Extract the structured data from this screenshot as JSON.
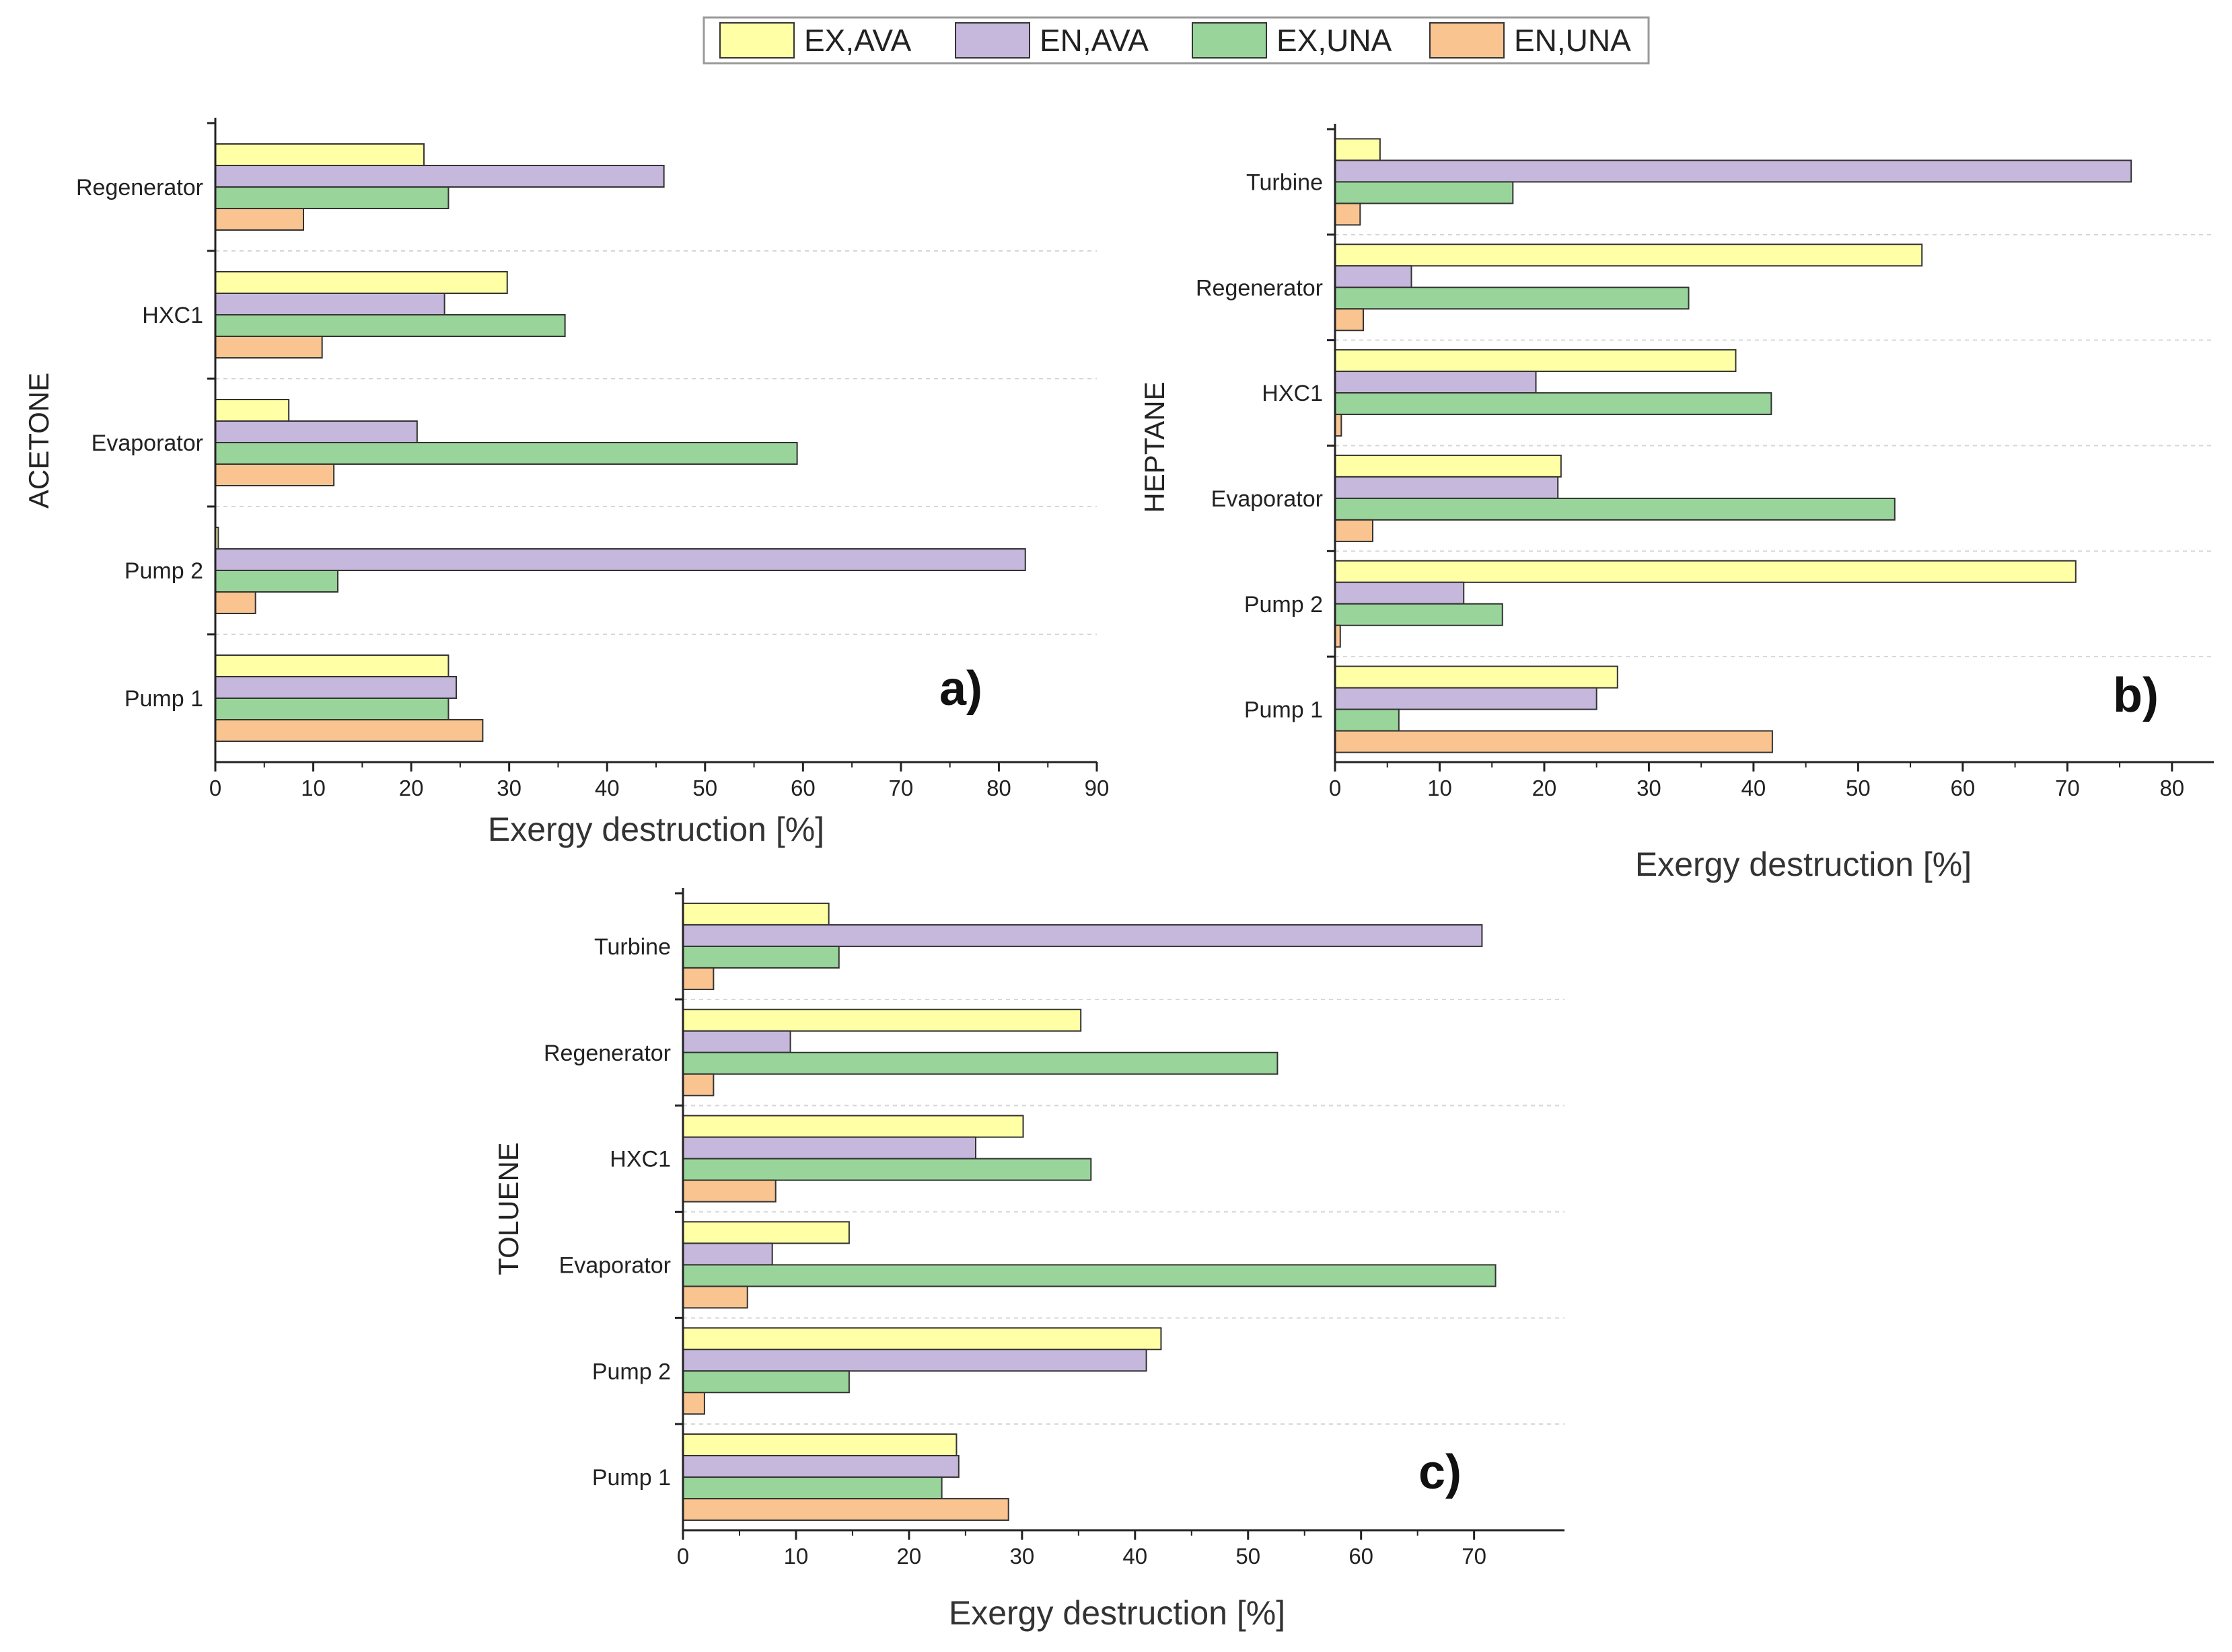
{
  "colors": {
    "ex_ava": "#FFFFA6",
    "en_ava": "#C6B7DC",
    "ex_una": "#99D59A",
    "en_una": "#FAC490",
    "bar_outline": "#333333",
    "grid": "#D6D6D6"
  },
  "legend": {
    "items": [
      {
        "label": "EX,AVA",
        "color": "#FFFFA6"
      },
      {
        "label": "EN,AVA",
        "color": "#C6B7DC"
      },
      {
        "label": "EX,UNA",
        "color": "#99D59A"
      },
      {
        "label": "EN,UNA",
        "color": "#FAC490"
      }
    ]
  },
  "chart_data": [
    {
      "type": "bar",
      "orientation": "horizontal",
      "panel": "a)",
      "title": "",
      "ylabel": "ACETONE",
      "xlabel": "Exergy destruction [%]",
      "xlim": [
        0,
        90
      ],
      "xticks": [
        0,
        10,
        20,
        30,
        40,
        50,
        60,
        70,
        80,
        90
      ],
      "grid": true,
      "categories": [
        "Regenerator",
        "HXC1",
        "Evaporator",
        "Pump 2",
        "Pump 1"
      ],
      "series": [
        {
          "name": "EX,AVA",
          "values": [
            21.3,
            29.8,
            7.5,
            0.3,
            23.8
          ]
        },
        {
          "name": "EN,AVA",
          "values": [
            45.8,
            23.4,
            20.6,
            82.7,
            24.6
          ]
        },
        {
          "name": "EX,UNA",
          "values": [
            23.8,
            35.7,
            59.4,
            12.5,
            23.8
          ]
        },
        {
          "name": "EN,UNA",
          "values": [
            9.0,
            10.9,
            12.1,
            4.1,
            27.3
          ]
        }
      ]
    },
    {
      "type": "bar",
      "orientation": "horizontal",
      "panel": "b)",
      "title": "",
      "ylabel": "HEPTANE",
      "xlabel": "Exergy destruction [%]",
      "xlim": [
        0,
        84
      ],
      "xticks": [
        0,
        10,
        20,
        30,
        40,
        50,
        60,
        70,
        80
      ],
      "grid": true,
      "categories": [
        "Turbine",
        "Regenerator",
        "HXC1",
        "Evaporator",
        "Pump 2",
        "Pump 1"
      ],
      "series": [
        {
          "name": "EX,AVA",
          "values": [
            4.3,
            56.1,
            38.3,
            21.6,
            70.8,
            27.0
          ]
        },
        {
          "name": "EN,AVA",
          "values": [
            76.1,
            7.3,
            19.2,
            21.3,
            12.3,
            25.0
          ]
        },
        {
          "name": "EX,UNA",
          "values": [
            17.0,
            33.8,
            41.7,
            53.5,
            16.0,
            6.1
          ]
        },
        {
          "name": "EN,UNA",
          "values": [
            2.4,
            2.7,
            0.6,
            3.6,
            0.5,
            41.8
          ]
        }
      ]
    },
    {
      "type": "bar",
      "orientation": "horizontal",
      "panel": "c)",
      "title": "",
      "ylabel": "TOLUENE",
      "xlabel": "Exergy destruction [%]",
      "xlim": [
        0,
        78
      ],
      "xticks": [
        0,
        10,
        20,
        30,
        40,
        50,
        60,
        70
      ],
      "grid": true,
      "categories": [
        "Turbine",
        "Regenerator",
        "HXC1",
        "Evaporator",
        "Pump 2",
        "Pump 1"
      ],
      "series": [
        {
          "name": "EX,AVA",
          "values": [
            12.9,
            35.2,
            30.1,
            14.7,
            42.3,
            24.2
          ]
        },
        {
          "name": "EN,AVA",
          "values": [
            70.7,
            9.5,
            25.9,
            7.9,
            41.0,
            24.4
          ]
        },
        {
          "name": "EX,UNA",
          "values": [
            13.8,
            52.6,
            36.1,
            71.9,
            14.7,
            22.9
          ]
        },
        {
          "name": "EN,UNA",
          "values": [
            2.7,
            2.7,
            8.2,
            5.7,
            1.9,
            28.8
          ]
        }
      ]
    }
  ]
}
